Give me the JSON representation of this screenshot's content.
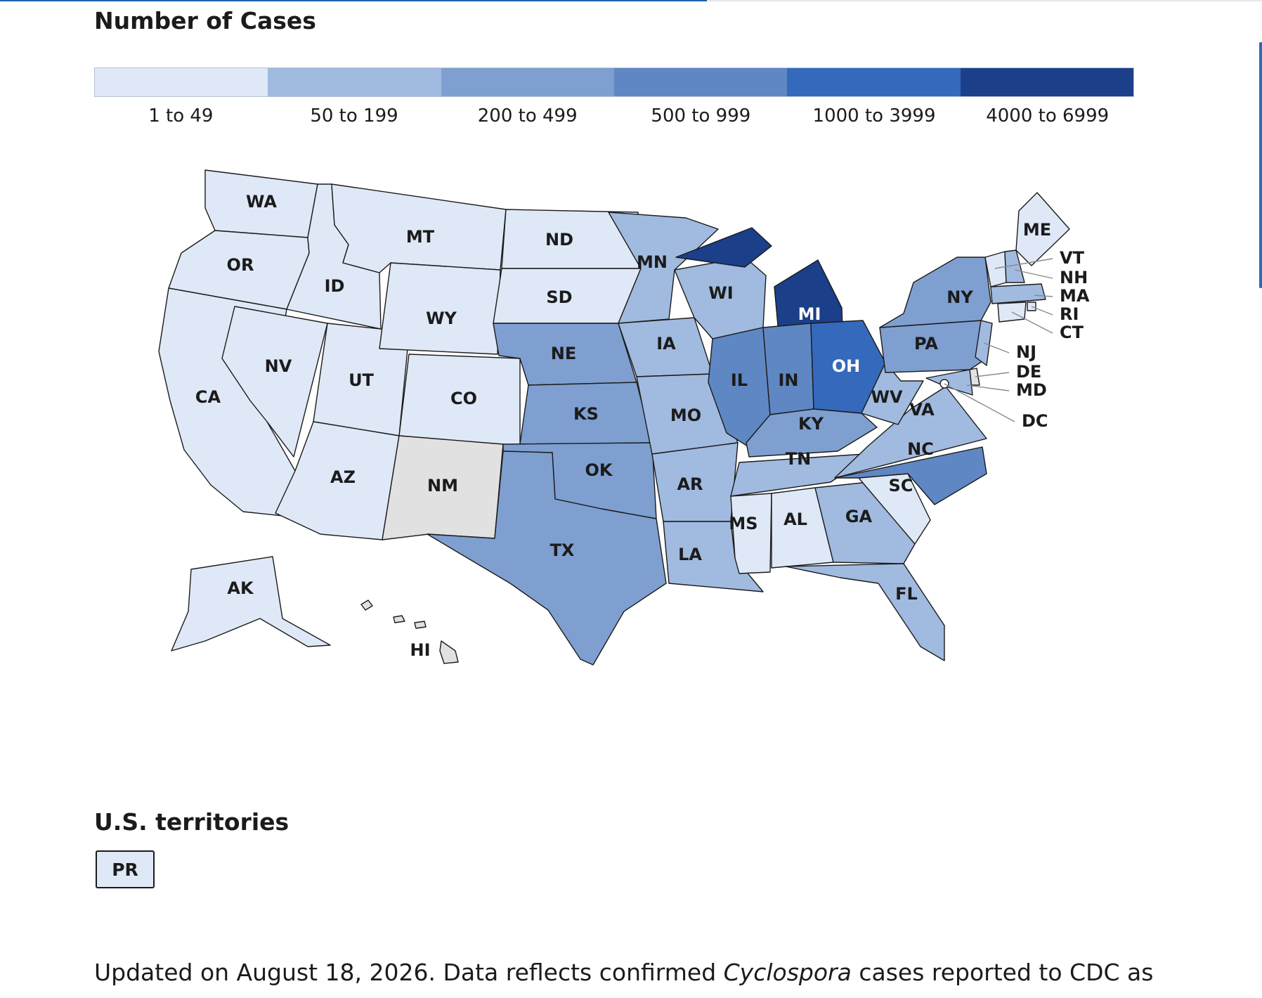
{
  "page": {
    "scroll_progress": 0.56
  },
  "legend": {
    "title": "Number of Cases",
    "bins": [
      {
        "label": "1 to 49",
        "color": "#dfe8f6"
      },
      {
        "label": "50 to 199",
        "color": "#a1badf"
      },
      {
        "label": "200 to 499",
        "color": "#7e9fd0"
      },
      {
        "label": "500 to 999",
        "color": "#5f87c3"
      },
      {
        "label": "1000 to 3999",
        "color": "#3469bc"
      },
      {
        "label": "4000 to 6999",
        "color": "#1c3f8a"
      }
    ],
    "no_data_color": "#e1e1e1"
  },
  "states": [
    {
      "abbr": "WA",
      "bin": 0
    },
    {
      "abbr": "OR",
      "bin": 0
    },
    {
      "abbr": "CA",
      "bin": 0
    },
    {
      "abbr": "ID",
      "bin": 0
    },
    {
      "abbr": "NV",
      "bin": 0
    },
    {
      "abbr": "UT",
      "bin": 0
    },
    {
      "abbr": "AZ",
      "bin": 0
    },
    {
      "abbr": "MT",
      "bin": 0
    },
    {
      "abbr": "WY",
      "bin": 0
    },
    {
      "abbr": "CO",
      "bin": 0
    },
    {
      "abbr": "NM",
      "bin": null
    },
    {
      "abbr": "ND",
      "bin": 0
    },
    {
      "abbr": "SD",
      "bin": 0
    },
    {
      "abbr": "NE",
      "bin": 2
    },
    {
      "abbr": "KS",
      "bin": 2
    },
    {
      "abbr": "OK",
      "bin": 2
    },
    {
      "abbr": "TX",
      "bin": 2
    },
    {
      "abbr": "MN",
      "bin": 1
    },
    {
      "abbr": "IA",
      "bin": 1
    },
    {
      "abbr": "MO",
      "bin": 1
    },
    {
      "abbr": "AR",
      "bin": 1
    },
    {
      "abbr": "LA",
      "bin": 1
    },
    {
      "abbr": "WI",
      "bin": 1
    },
    {
      "abbr": "IL",
      "bin": 3
    },
    {
      "abbr": "MI",
      "bin": 5
    },
    {
      "abbr": "IN",
      "bin": 3
    },
    {
      "abbr": "OH",
      "bin": 4
    },
    {
      "abbr": "KY",
      "bin": 2
    },
    {
      "abbr": "TN",
      "bin": 1
    },
    {
      "abbr": "MS",
      "bin": 0
    },
    {
      "abbr": "AL",
      "bin": 0
    },
    {
      "abbr": "GA",
      "bin": 1
    },
    {
      "abbr": "FL",
      "bin": 1
    },
    {
      "abbr": "SC",
      "bin": 0
    },
    {
      "abbr": "NC",
      "bin": 3
    },
    {
      "abbr": "VA",
      "bin": 1
    },
    {
      "abbr": "WV",
      "bin": 1
    },
    {
      "abbr": "PA",
      "bin": 2
    },
    {
      "abbr": "NY",
      "bin": 2
    },
    {
      "abbr": "ME",
      "bin": 0
    },
    {
      "abbr": "AK",
      "bin": 0
    },
    {
      "abbr": "HI",
      "bin": null
    }
  ],
  "callouts": [
    {
      "abbr": "VT",
      "bin": 0
    },
    {
      "abbr": "NH",
      "bin": 1
    },
    {
      "abbr": "MA",
      "bin": 1
    },
    {
      "abbr": "RI",
      "bin": 0
    },
    {
      "abbr": "CT",
      "bin": 0
    },
    {
      "abbr": "NJ",
      "bin": 1
    },
    {
      "abbr": "DE",
      "bin": null
    },
    {
      "abbr": "MD",
      "bin": 1
    },
    {
      "abbr": "DC",
      "bin": 0
    }
  ],
  "territories": {
    "title": "U.S. territories",
    "items": [
      {
        "abbr": "PR",
        "bin": 0
      }
    ]
  },
  "footnote": {
    "before": "Updated on August 18, 2026. Data reflects confirmed ",
    "italic": "Cyclospora",
    "after": " cases reported to CDC as"
  }
}
